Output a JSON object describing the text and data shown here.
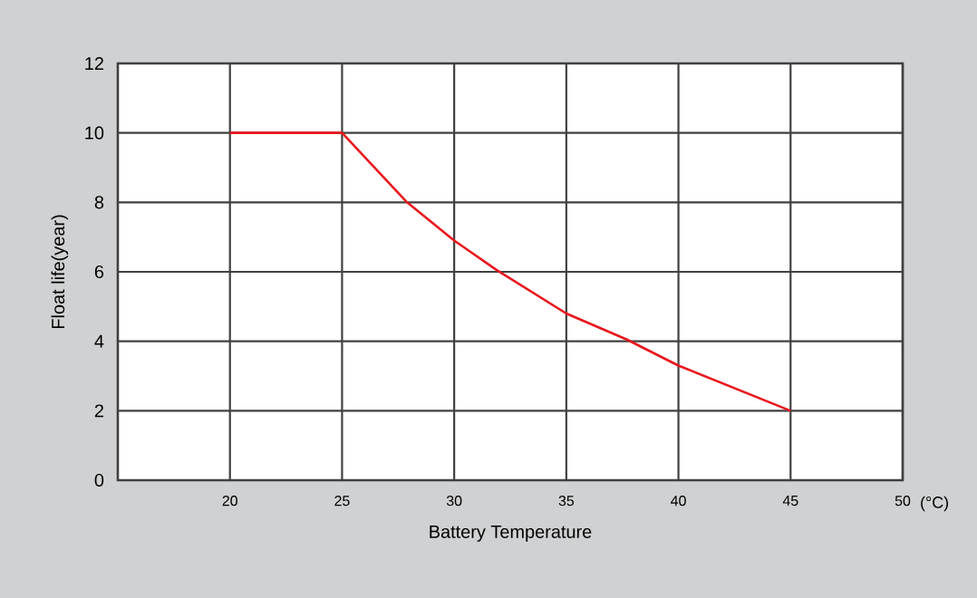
{
  "chart_data": {
    "type": "line",
    "xlabel": "Battery Temperature",
    "ylabel": "Float life(year)",
    "annotations": [
      "(°C)"
    ],
    "x": [
      20,
      25,
      27.9,
      30,
      31.9,
      35,
      37.7,
      40,
      45
    ],
    "series": [
      {
        "color": "#e8161c",
        "values": [
          10,
          10,
          8,
          6.9,
          6.05,
          4.8,
          4.05,
          3.3,
          2
        ]
      }
    ],
    "xlim": [
      15,
      50
    ],
    "xticks": [
      20,
      25,
      30,
      35,
      40,
      45,
      50
    ],
    "ylim": [
      0,
      12
    ],
    "yticks": [
      0,
      2,
      4,
      6,
      8,
      10,
      12
    ],
    "grid": true,
    "marker": "none",
    "line_style": "solid"
  }
}
